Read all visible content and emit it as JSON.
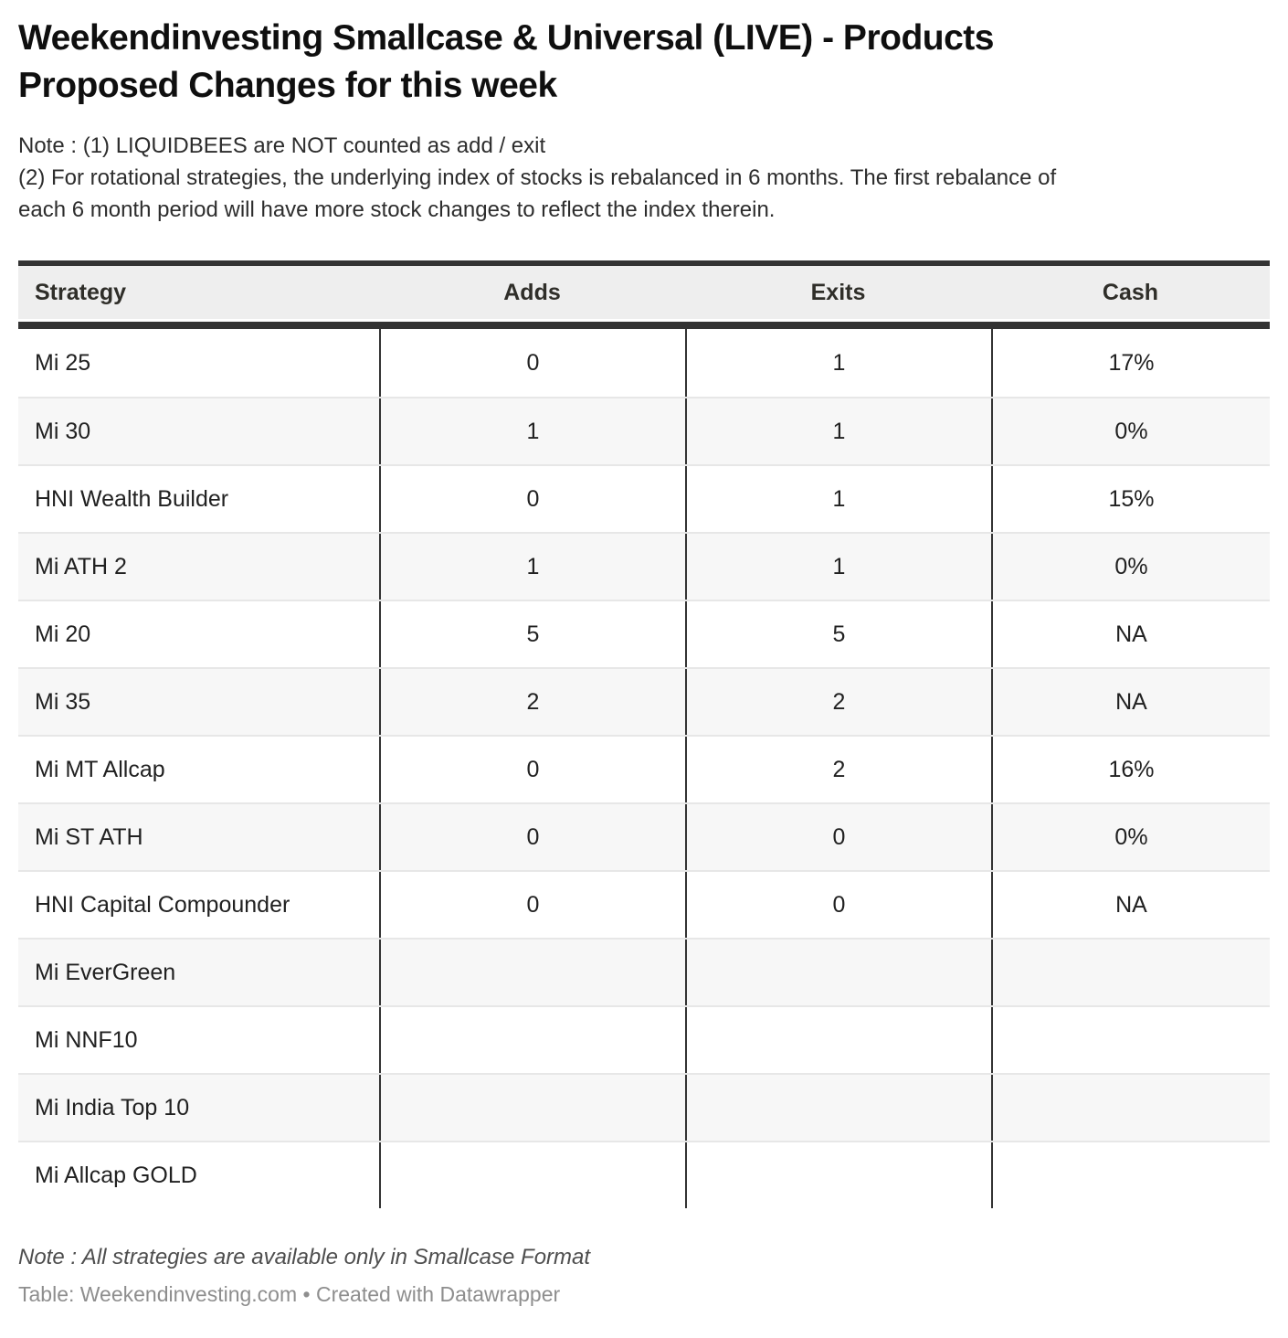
{
  "title_lines": [
    "Weekendinvesting Smallcase & Universal (LIVE) - Products",
    "Proposed Changes for this week"
  ],
  "description_lines": [
    "Note : (1) LIQUIDBEES are NOT counted as add / exit",
    "(2) For rotational strategies, the underlying index of stocks is rebalanced in 6 months. The first rebalance of",
    "each 6 month period will have more stock changes to reflect the index therein."
  ],
  "chart_data": {
    "type": "table",
    "title": "Weekendinvesting Smallcase & Universal (LIVE) - Products Proposed Changes for this week",
    "columns": [
      "Strategy",
      "Adds",
      "Exits",
      "Cash"
    ],
    "rows": [
      [
        "Mi 25",
        "0",
        "1",
        "17%"
      ],
      [
        "Mi 30",
        "1",
        "1",
        "0%"
      ],
      [
        "HNI Wealth Builder",
        "0",
        "1",
        "15%"
      ],
      [
        "Mi ATH 2",
        "1",
        "1",
        "0%"
      ],
      [
        "Mi 20",
        "5",
        "5",
        "NA"
      ],
      [
        "Mi 35",
        "2",
        "2",
        "NA"
      ],
      [
        "Mi MT Allcap",
        "0",
        "2",
        "16%"
      ],
      [
        "Mi ST ATH",
        "0",
        "0",
        "0%"
      ],
      [
        "HNI Capital Compounder",
        "0",
        "0",
        "NA"
      ],
      [
        "Mi EverGreen",
        "",
        "",
        ""
      ],
      [
        "Mi NNF10",
        "",
        "",
        ""
      ],
      [
        "Mi India Top 10",
        "",
        "",
        ""
      ],
      [
        "Mi Allcap GOLD",
        "",
        "",
        ""
      ]
    ],
    "layout": {
      "striped_rows": true,
      "header_background": "#eeeeee",
      "column_alignment": [
        "left",
        "center",
        "center",
        "center"
      ]
    }
  },
  "footer": {
    "note": "Note : All strategies are available only in Smallcase Format",
    "credit": "Table: Weekendinvesting.com • Created with Datawrapper"
  },
  "colors": {
    "border_dark": "#333333",
    "header_bg": "#eeeeee",
    "row_stripe_bg": "#f7f7f7",
    "row_divider": "#e7e7e7",
    "title_text": "#0f0f0f",
    "body_text": "#212121",
    "footer_note_text": "#4e4e4e",
    "credit_text": "#8e8e8e"
  }
}
